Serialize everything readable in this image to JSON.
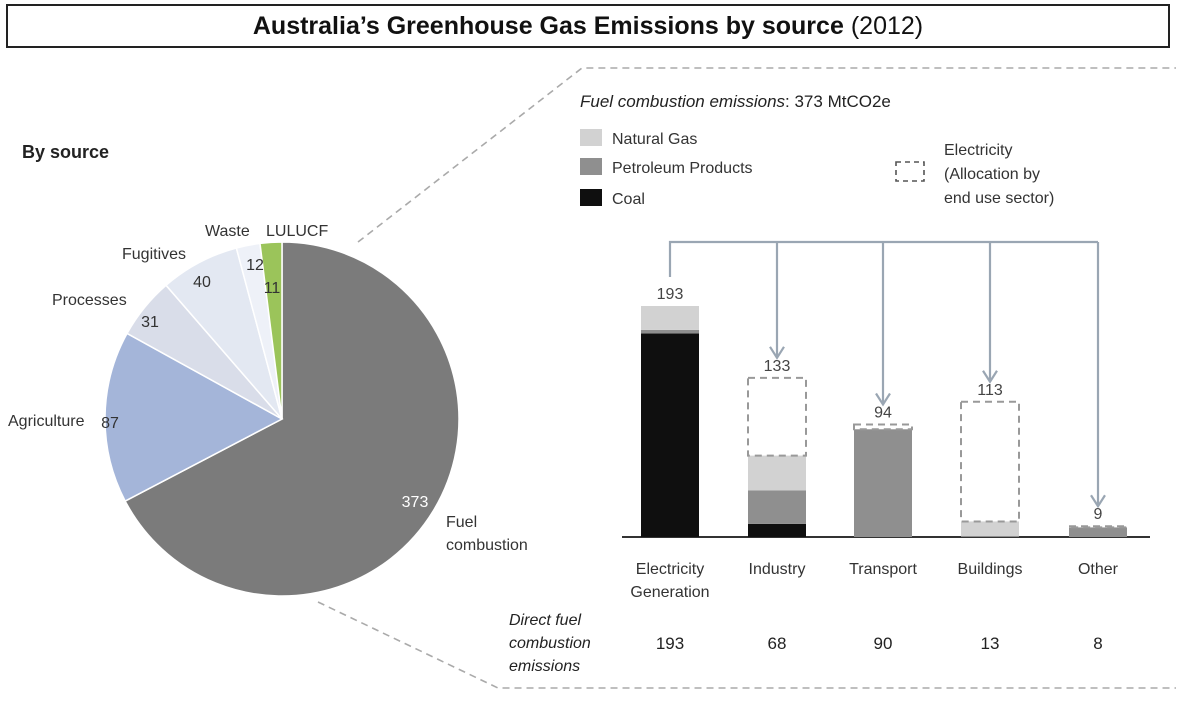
{
  "title": "Australia’s Greenhouse Gas Emissions by source",
  "title_year": "(2012)",
  "colors": {
    "fuel": "#7b7b7b",
    "agriculture": "#a4b5d9",
    "processes": "#d9dde9",
    "fugitives": "#e3e8f2",
    "waste": "#eef1f8",
    "lulucf": "#9bc45a",
    "natural_gas": "#d2d2d2",
    "petroleum": "#8f8f8f",
    "coal": "#0f0f0f",
    "electricity": "#999999",
    "arrow": "#9aa6b3"
  },
  "chart_data": [
    {
      "type": "pie",
      "title": "By source",
      "slices": [
        {
          "label": "Fuel combustion",
          "value": 373,
          "color": "#7b7b7b"
        },
        {
          "label": "Agriculture",
          "value": 87,
          "color": "#a4b5d9"
        },
        {
          "label": "Processes",
          "value": 31,
          "color": "#d9dde9"
        },
        {
          "label": "Fugitives",
          "value": 40,
          "color": "#e3e8f2"
        },
        {
          "label": "Waste",
          "value": 12,
          "color": "#eef1f8"
        },
        {
          "label": "LULUCF",
          "value": 11,
          "color": "#9bc45a"
        }
      ]
    },
    {
      "type": "bar",
      "stacked": true,
      "title": "Fuel combustion emissions",
      "title_value": ": 373 MtCO2e",
      "categories": [
        "Electricity Generation",
        "Industry",
        "Transport",
        "Buildings",
        "Other"
      ],
      "category_lines": [
        [
          "Electricity",
          "Generation"
        ],
        [
          "Industry"
        ],
        [
          "Transport"
        ],
        [
          "Buildings"
        ],
        [
          "Other"
        ]
      ],
      "series": [
        {
          "name": "Coal",
          "values": [
            170,
            11,
            0,
            0,
            0
          ],
          "color": "#0f0f0f"
        },
        {
          "name": "Petroleum Products",
          "values": [
            3,
            28,
            90,
            1,
            8
          ],
          "color": "#8f8f8f"
        },
        {
          "name": "Natural Gas",
          "values": [
            20,
            29,
            0,
            12,
            0
          ],
          "color": "#d2d2d2"
        },
        {
          "name": "Electricity\n(Allocation by\nend use sector)",
          "values": [
            0,
            65,
            4,
            100,
            1
          ],
          "color": "#999999",
          "dashed": true
        }
      ],
      "legend": [
        {
          "name": "Natural Gas",
          "color": "#d2d2d2"
        },
        {
          "name": "Petroleum Products",
          "color": "#8f8f8f"
        },
        {
          "name": "Coal",
          "color": "#0f0f0f"
        }
      ],
      "electricity_legend": [
        "Electricity",
        "(Allocation by",
        "end use sector)"
      ],
      "totals": [
        193,
        133,
        94,
        113,
        9
      ],
      "direct_label": [
        "Direct fuel",
        "combustion",
        "emissions"
      ],
      "direct_values": [
        193,
        68,
        90,
        13,
        8
      ],
      "ylim": [
        0,
        200
      ]
    }
  ]
}
